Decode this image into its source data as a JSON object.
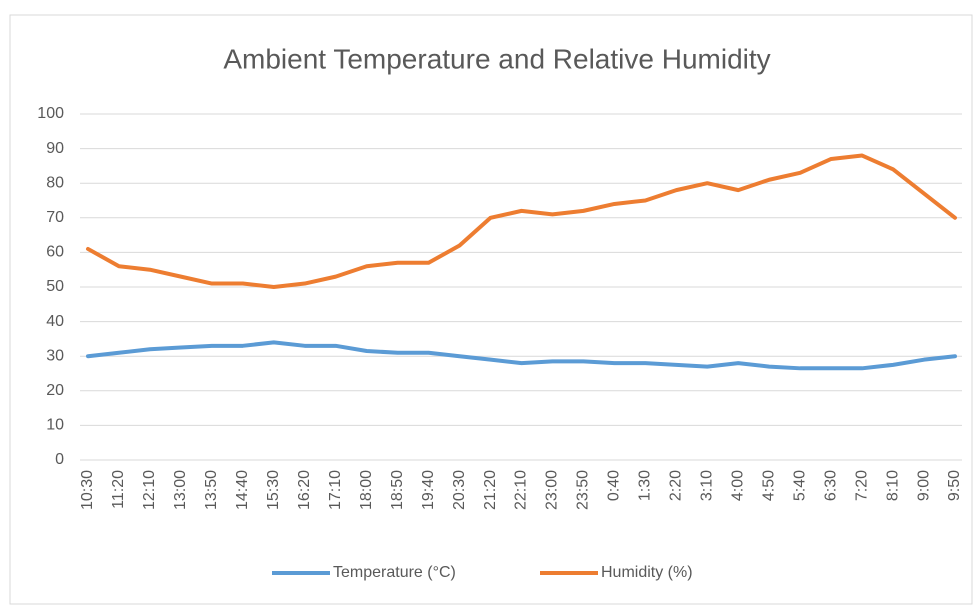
{
  "chart_data": {
    "type": "line",
    "title": "Ambient Temperature and Relative Humidity",
    "categories": [
      "10:30",
      "11:20",
      "12:10",
      "13:00",
      "13:50",
      "14:40",
      "15:30",
      "16:20",
      "17:10",
      "18:00",
      "18:50",
      "19:40",
      "20:30",
      "21:20",
      "22:10",
      "23:00",
      "23:50",
      "0:40",
      "1:30",
      "2:20",
      "3:10",
      "4:00",
      "4:50",
      "5:40",
      "6:30",
      "7:20",
      "8:10",
      "9:00",
      "9:50"
    ],
    "series": [
      {
        "name": "Temperature (°C)",
        "color": "#5b9bd5",
        "values": [
          30,
          31,
          32,
          32.5,
          33,
          33,
          34,
          33,
          33,
          31.5,
          31,
          31,
          30,
          29,
          28,
          28.5,
          28.5,
          28,
          28,
          27.5,
          27,
          28,
          27,
          26.5,
          26.5,
          26.5,
          27.5,
          29,
          30
        ]
      },
      {
        "name": "Humidity (%)",
        "color": "#ed7d31",
        "values": [
          61,
          56,
          55,
          53,
          51,
          51,
          50,
          51,
          53,
          56,
          57,
          57,
          62,
          70,
          72,
          71,
          72,
          74,
          75,
          78,
          80,
          78,
          81,
          83,
          87,
          88,
          84,
          77,
          70
        ]
      }
    ],
    "ylim": [
      0,
      100
    ],
    "yticks": [
      0,
      10,
      20,
      30,
      40,
      50,
      60,
      70,
      80,
      90,
      100
    ],
    "grid": true,
    "legend": "bottom"
  }
}
